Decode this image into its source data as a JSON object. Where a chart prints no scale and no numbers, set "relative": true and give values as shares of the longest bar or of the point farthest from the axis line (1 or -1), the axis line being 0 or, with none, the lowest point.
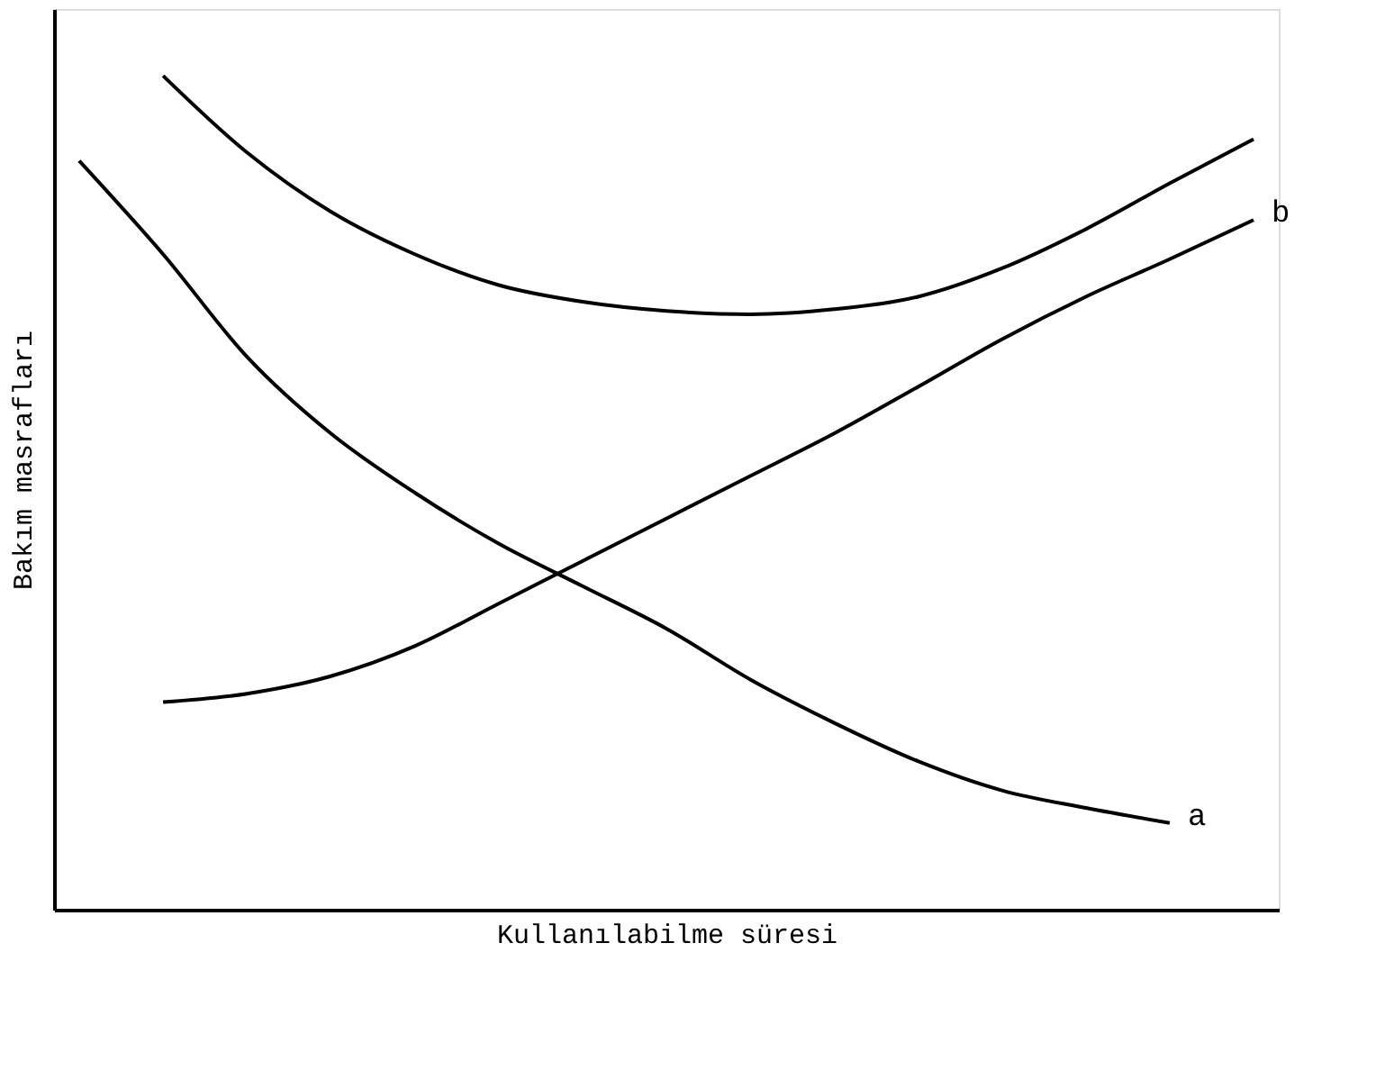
{
  "chart_data": {
    "type": "line",
    "relative": true,
    "xlabel": "Kullanılabilme süresi",
    "ylabel": "Bakım masrafları",
    "categories": [
      null,
      null,
      null,
      null,
      null,
      null,
      null,
      null,
      null,
      null,
      null,
      null,
      null,
      null,
      null
    ],
    "grid": false,
    "marker": "none",
    "line_style": "solid",
    "series": [
      {
        "name": "a",
        "color": "#000000",
        "values": [
          0.898,
          0.786,
          0.663,
          0.571,
          0.5,
          0.439,
          0.388,
          0.337,
          0.276,
          0.224,
          0.178,
          0.143,
          0.122,
          0.104,
          null
        ]
      },
      {
        "name": "b",
        "color": "#000000",
        "values": [
          null,
          0.249,
          0.259,
          0.28,
          0.316,
          0.367,
          0.418,
          0.469,
          0.52,
          0.571,
          0.627,
          0.684,
          0.735,
          0.78,
          0.827
        ]
      },
      {
        "color": "#000000",
        "values": [
          null,
          1.0,
          0.908,
          0.837,
          0.786,
          0.749,
          0.729,
          0.718,
          0.714,
          0.72,
          0.735,
          0.769,
          0.816,
          0.871,
          0.924
        ]
      }
    ]
  }
}
